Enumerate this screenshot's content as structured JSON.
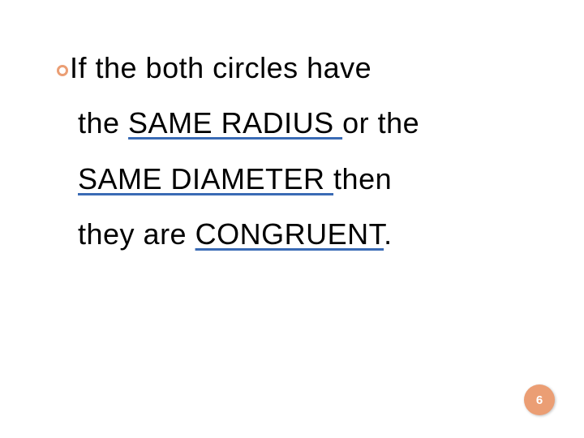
{
  "slide": {
    "bullet_color": "#eb9e74",
    "underline_color": "#3a6bb5",
    "text_color": "#000000",
    "background_color": "#ffffff",
    "font_size_pt": 27,
    "lines": {
      "l1_part1": "If the both circles have",
      "l2_pre": "the ",
      "l2_u": "SAME RADIUS ",
      "l2_post": "or the",
      "l3_u": "SAME DIAMETER ",
      "l3_post": "then",
      "l4_pre": "they are ",
      "l4_u": "CONGRUENT",
      "l4_post": "."
    },
    "page_number": "6"
  }
}
